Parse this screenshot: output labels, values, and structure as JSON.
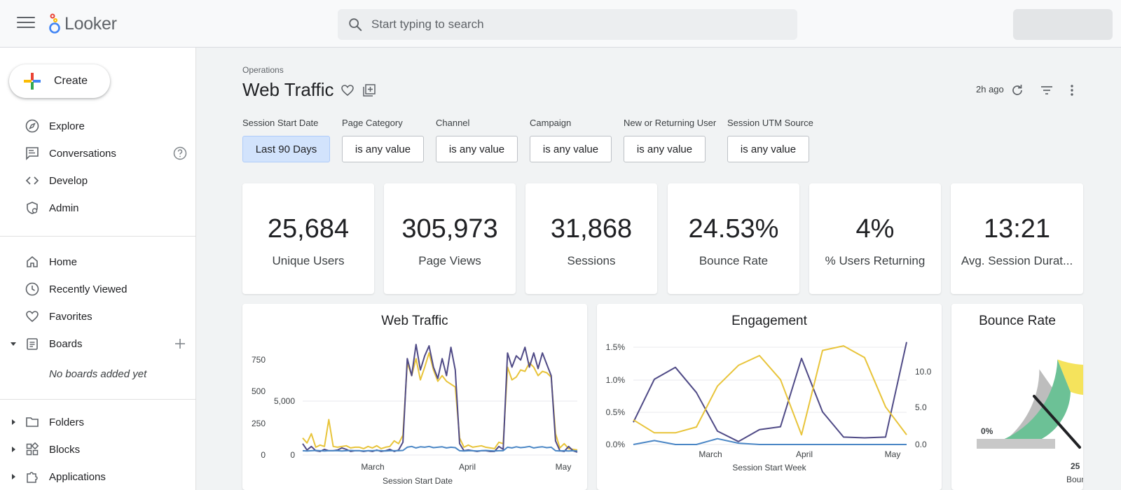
{
  "header": {
    "app_name": "Looker",
    "search_placeholder": "Start typing to search"
  },
  "sidebar": {
    "create_label": "Create",
    "primary": [
      {
        "label": "Explore",
        "icon": "compass-icon"
      },
      {
        "label": "Conversations",
        "icon": "chat-icon"
      },
      {
        "label": "Develop",
        "icon": "code-icon"
      },
      {
        "label": "Admin",
        "icon": "admin-icon"
      }
    ],
    "secondary": [
      {
        "label": "Home",
        "icon": "home-icon"
      },
      {
        "label": "Recently Viewed",
        "icon": "clock-icon"
      },
      {
        "label": "Favorites",
        "icon": "heart-icon"
      },
      {
        "label": "Boards",
        "icon": "board-icon"
      }
    ],
    "boards_empty": "No boards added yet",
    "tertiary": [
      {
        "label": "Folders",
        "icon": "folder-icon"
      },
      {
        "label": "Blocks",
        "icon": "blocks-icon"
      },
      {
        "label": "Applications",
        "icon": "puzzle-icon"
      }
    ]
  },
  "dashboard": {
    "breadcrumb": "Operations",
    "title": "Web Traffic",
    "updated": "2h ago",
    "filters": [
      {
        "label": "Session Start Date",
        "value": "Last 90 Days"
      },
      {
        "label": "Page Category",
        "value": "is any value"
      },
      {
        "label": "Channel",
        "value": "is any value"
      },
      {
        "label": "Campaign",
        "value": "is any value"
      },
      {
        "label": "New or Returning User",
        "value": "is any value"
      },
      {
        "label": "Session UTM Source",
        "value": "is any value"
      }
    ],
    "kpis": [
      {
        "value": "25,684",
        "label": "Unique Users"
      },
      {
        "value": "305,973",
        "label": "Page Views"
      },
      {
        "value": "31,868",
        "label": "Sessions"
      },
      {
        "value": "24.53%",
        "label": "Bounce Rate"
      },
      {
        "value": "4%",
        "label": "% Users Returning"
      },
      {
        "value": "13:21",
        "label": "Avg. Session Durat..."
      }
    ]
  },
  "colors": {
    "yellow": "#e8c43a",
    "purple": "#4f4a86",
    "blue": "#4a86c5",
    "gauge_green": "#6cc196",
    "gauge_yellow": "#f5e35c"
  },
  "chart_data": [
    {
      "type": "line",
      "title": "Web Traffic",
      "xlabel": "Session Start Date",
      "x_ticks": [
        "March",
        "April",
        "May"
      ],
      "y_left_ticks": [
        "750",
        "500",
        "250",
        "0"
      ],
      "y_inner_ticks": [
        "5,000",
        "0"
      ],
      "series": [
        {
          "color": "yellow",
          "values": [
            120,
            85,
            150,
            55,
            70,
            60,
            250,
            60,
            55,
            60,
            65,
            50,
            55,
            55,
            45,
            60,
            50,
            65,
            45,
            55,
            60,
            100,
            80,
            140,
            650,
            560,
            680,
            530,
            620,
            720,
            600,
            520,
            560,
            520,
            500,
            480,
            120,
            55,
            70,
            55,
            60,
            65,
            55,
            50,
            45,
            90,
            80,
            620,
            530,
            550,
            600,
            590,
            650,
            620,
            560,
            590,
            580,
            550,
            150,
            50,
            80,
            45,
            40,
            35
          ]
        },
        {
          "color": "purple",
          "values": [
            80,
            35,
            60,
            30,
            25,
            40,
            30,
            30,
            35,
            50,
            40,
            25,
            30,
            30,
            25,
            30,
            25,
            35,
            25,
            30,
            40,
            25,
            35,
            90,
            680,
            560,
            780,
            600,
            700,
            770,
            620,
            540,
            680,
            560,
            760,
            600,
            80,
            30,
            35,
            30,
            25,
            30,
            30,
            25,
            25,
            60,
            40,
            720,
            620,
            700,
            670,
            760,
            620,
            720,
            610,
            720,
            640,
            560,
            100,
            30,
            25,
            60,
            30,
            20
          ]
        },
        {
          "color": "blue",
          "values": [
            30,
            28,
            30,
            32,
            30,
            28,
            30,
            30,
            30,
            28,
            30,
            32,
            30,
            30,
            28,
            30,
            30,
            32,
            30,
            28,
            30,
            30,
            30,
            32,
            55,
            60,
            50,
            58,
            55,
            60,
            52,
            55,
            58,
            50,
            55,
            52,
            30,
            28,
            30,
            30,
            28,
            30,
            32,
            30,
            28,
            30,
            30,
            55,
            50,
            58,
            52,
            55,
            60,
            50,
            55,
            58,
            52,
            55,
            30,
            28,
            30,
            28,
            30,
            28
          ]
        }
      ]
    },
    {
      "type": "line",
      "title": "Engagement",
      "xlabel": "Session Start Week",
      "x_ticks": [
        "March",
        "April",
        "May"
      ],
      "y_left_ticks": [
        "1.5%",
        "1.0%",
        "0.5%",
        "0.0%"
      ],
      "y_right_ticks": [
        "10.0",
        "5.0",
        "0.0"
      ],
      "series": [
        {
          "color": "purple",
          "axis": "right",
          "values": [
            3.0,
            8.8,
            10.4,
            7.0,
            1.8,
            0.4,
            2.0,
            2.4,
            11.6,
            4.4,
            1.0,
            0.9,
            1.0,
            13.8
          ]
        },
        {
          "color": "yellow",
          "axis": "left",
          "values": [
            0.38,
            0.18,
            0.18,
            0.27,
            0.9,
            1.22,
            1.37,
            1.0,
            0.15,
            1.45,
            1.52,
            1.34,
            0.58,
            0.15
          ]
        },
        {
          "color": "blue",
          "axis": "left",
          "values": [
            0.0,
            0.06,
            0.0,
            0.0,
            0.09,
            0.02,
            0.0,
            0.0,
            0.0,
            0.0,
            0.0,
            0.0,
            0.0,
            0.0
          ]
        }
      ]
    },
    {
      "type": "gauge",
      "title": "Bounce Rate",
      "min_label": "0%",
      "value_label": "25",
      "value_sublabel": "Boun"
    }
  ]
}
